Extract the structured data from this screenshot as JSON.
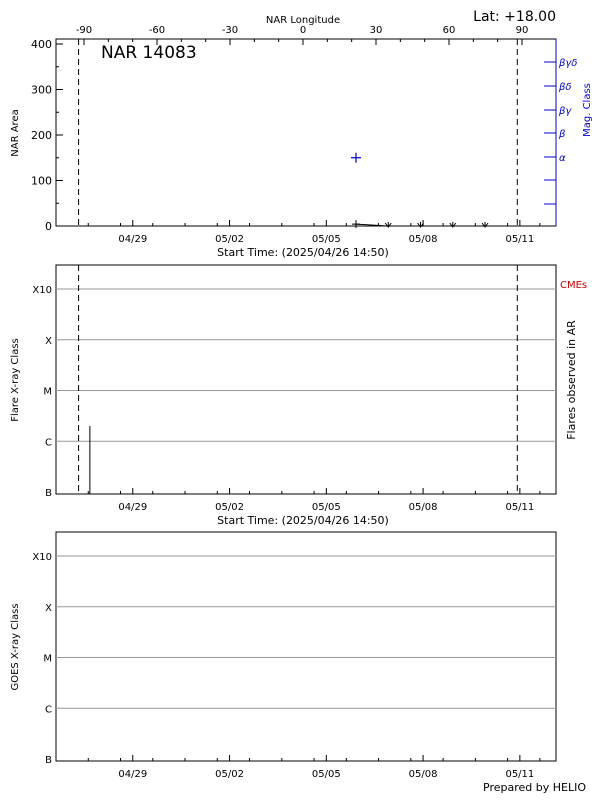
{
  "header": {
    "latitude_label": "Lat: +18.00",
    "credit": "Prepared by HELIO"
  },
  "chart_data": [
    {
      "type": "scatter",
      "title": "NAR 14083",
      "top_axis_label": "NAR Longitude",
      "top_ticks": [
        "-90",
        "-60",
        "-30",
        "0",
        "30",
        "60",
        "90"
      ],
      "top_tick_values": [
        -90,
        -60,
        -30,
        0,
        30,
        60,
        90
      ],
      "ylabel": "NAR Area",
      "ylim": [
        0,
        400
      ],
      "yticks": [
        0,
        100,
        200,
        300,
        400
      ],
      "xlabel": "Start Time: (2025/04/26 14:50)",
      "xlim_days": [
        0,
        15.5
      ],
      "date_ticks": [
        "04/29",
        "05/02",
        "05/05",
        "05/08",
        "05/11"
      ],
      "date_tick_days": [
        2.38,
        5.38,
        8.38,
        11.38,
        14.38
      ],
      "vertical_dashed_days": [
        0.7,
        14.3
      ],
      "area_series": {
        "days": [
          9.3,
          10.3,
          11.3,
          12.3,
          13.3
        ],
        "values": [
          4,
          0,
          0,
          0,
          0
        ]
      },
      "right_axis": {
        "label": "Mag. Class",
        "color": "#0000cc",
        "classes": [
          "α",
          "β",
          "βγ",
          "βδ",
          "βγδ"
        ]
      },
      "mag_class_point": {
        "day": 9.3,
        "area": 150
      }
    },
    {
      "type": "bar",
      "ylabel": "Flare X-ray Class",
      "right_label": "Flares observed in AR",
      "cme_label": "CMEs",
      "cme_color": "#cc0000",
      "xlabel": "Start Time: (2025/04/26 14:50)",
      "classes": [
        "B",
        "C",
        "M",
        "X",
        "X10"
      ],
      "date_ticks": [
        "04/29",
        "05/02",
        "05/05",
        "05/08",
        "05/11"
      ],
      "vertical_dashed_days": [
        0.7,
        14.3
      ],
      "flares": [
        {
          "day": 1.05,
          "class_level": 1.3
        }
      ]
    },
    {
      "type": "line",
      "ylabel": "GOES X-ray Class",
      "classes": [
        "B",
        "C",
        "M",
        "X",
        "X10"
      ],
      "date_ticks": [
        "04/29",
        "05/02",
        "05/05",
        "05/08",
        "05/11"
      ]
    }
  ]
}
